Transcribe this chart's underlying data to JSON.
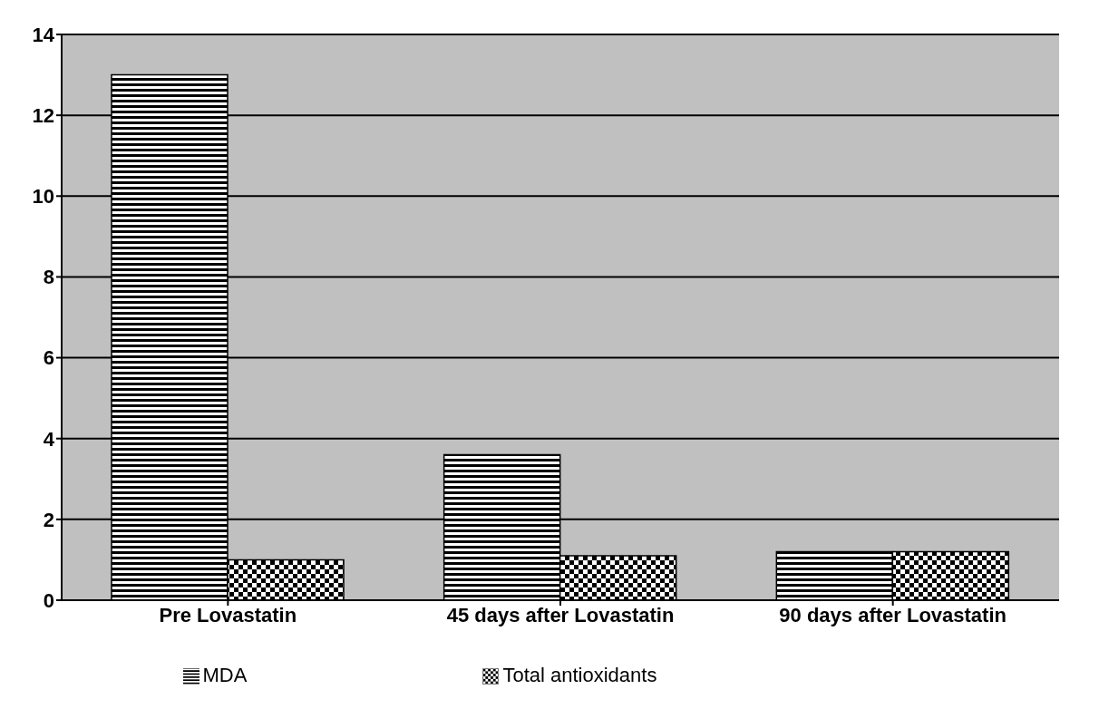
{
  "chart_data": {
    "type": "bar",
    "categories": [
      "Pre Lovastatin",
      "45 days after Lovastatin",
      "90 days after Lovastatin"
    ],
    "series": [
      {
        "name": "MDA",
        "color": "#000000",
        "values": [
          13,
          3.6,
          1.2
        ]
      },
      {
        "name": "Total antioxidants",
        "color": "#000000",
        "values": [
          1,
          1.1,
          1.2
        ]
      }
    ],
    "ylim": [
      0,
      14
    ],
    "yticks": [
      0,
      2,
      4,
      6,
      8,
      10,
      12,
      14
    ],
    "grid": "y",
    "legend": "bottom"
  }
}
